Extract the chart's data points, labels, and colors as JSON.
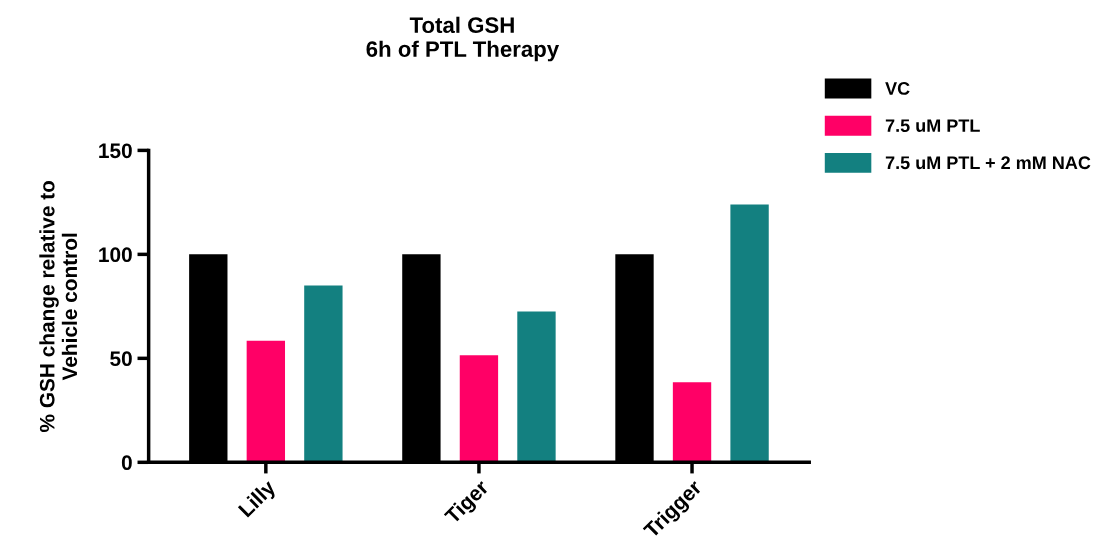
{
  "chart_data": {
    "type": "bar",
    "title": "Total GSH\n6h of PTL Therapy",
    "ylabel": "% GSH change relative to\nVehicle control",
    "categories": [
      "Lilly",
      "Tiger",
      "Trigger"
    ],
    "series": [
      {
        "name": "VC",
        "color": "#000000",
        "values": [
          100,
          100,
          100
        ]
      },
      {
        "name": "7.5 uM PTL",
        "color": "#ff0066",
        "values": [
          58.5,
          51.5,
          38.5
        ]
      },
      {
        "name": "7.5 uM PTL + 2 mM NAC",
        "color": "#138080",
        "values": [
          85,
          72.5,
          124
        ]
      }
    ],
    "ylim": [
      0,
      150
    ],
    "yticks": [
      0,
      50,
      100,
      150
    ],
    "grid": false,
    "legend": "top right"
  }
}
